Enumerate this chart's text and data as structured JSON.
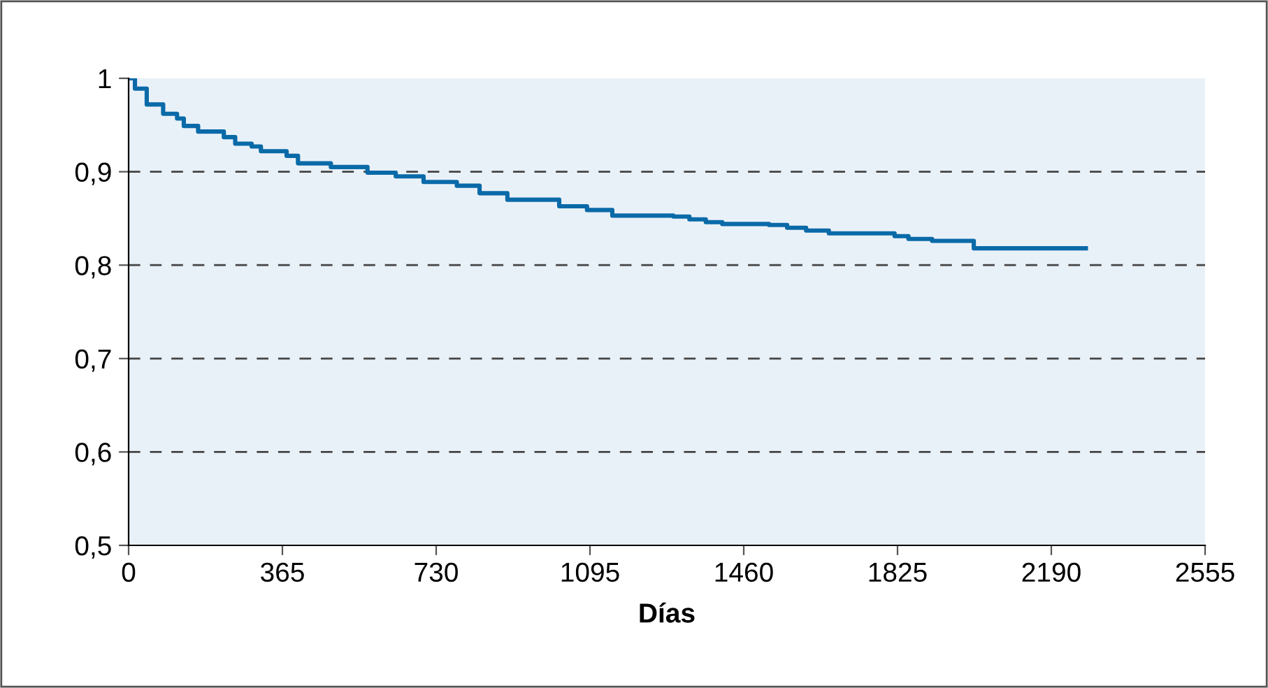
{
  "chart_data": {
    "type": "step",
    "xlabel": "Días",
    "x": [
      0,
      15,
      43,
      82,
      115,
      131,
      165,
      226,
      253,
      292,
      314,
      375,
      402,
      480,
      567,
      634,
      700,
      779,
      833,
      899,
      1022,
      1088,
      1148,
      1293,
      1331,
      1370,
      1409,
      1520,
      1563,
      1608,
      1662,
      1818,
      1851,
      1907,
      2006,
      2272
    ],
    "series": [
      {
        "color": "#0a6aa8",
        "values": [
          1.0,
          0.989,
          0.972,
          0.962,
          0.957,
          0.949,
          0.943,
          0.937,
          0.93,
          0.927,
          0.922,
          0.917,
          0.909,
          0.905,
          0.899,
          0.895,
          0.889,
          0.885,
          0.877,
          0.87,
          0.863,
          0.859,
          0.853,
          0.852,
          0.849,
          0.846,
          0.844,
          0.843,
          0.84,
          0.837,
          0.834,
          0.831,
          0.828,
          0.826,
          0.818,
          0.818
        ]
      }
    ],
    "xlim": [
      0,
      2555
    ],
    "xticks": [
      0,
      365,
      730,
      1095,
      1460,
      1825,
      2190,
      2555
    ],
    "ylim": [
      0.5,
      1
    ],
    "yticks": [
      {
        "value": 0.5,
        "label": "0,5"
      },
      {
        "value": 0.6,
        "label": "0,6"
      },
      {
        "value": 0.7,
        "label": "0,7"
      },
      {
        "value": 0.8,
        "label": "0,8"
      },
      {
        "value": 0.9,
        "label": "0,9"
      },
      1
    ],
    "grid": "y",
    "line_style": "solid",
    "marker": "none"
  }
}
